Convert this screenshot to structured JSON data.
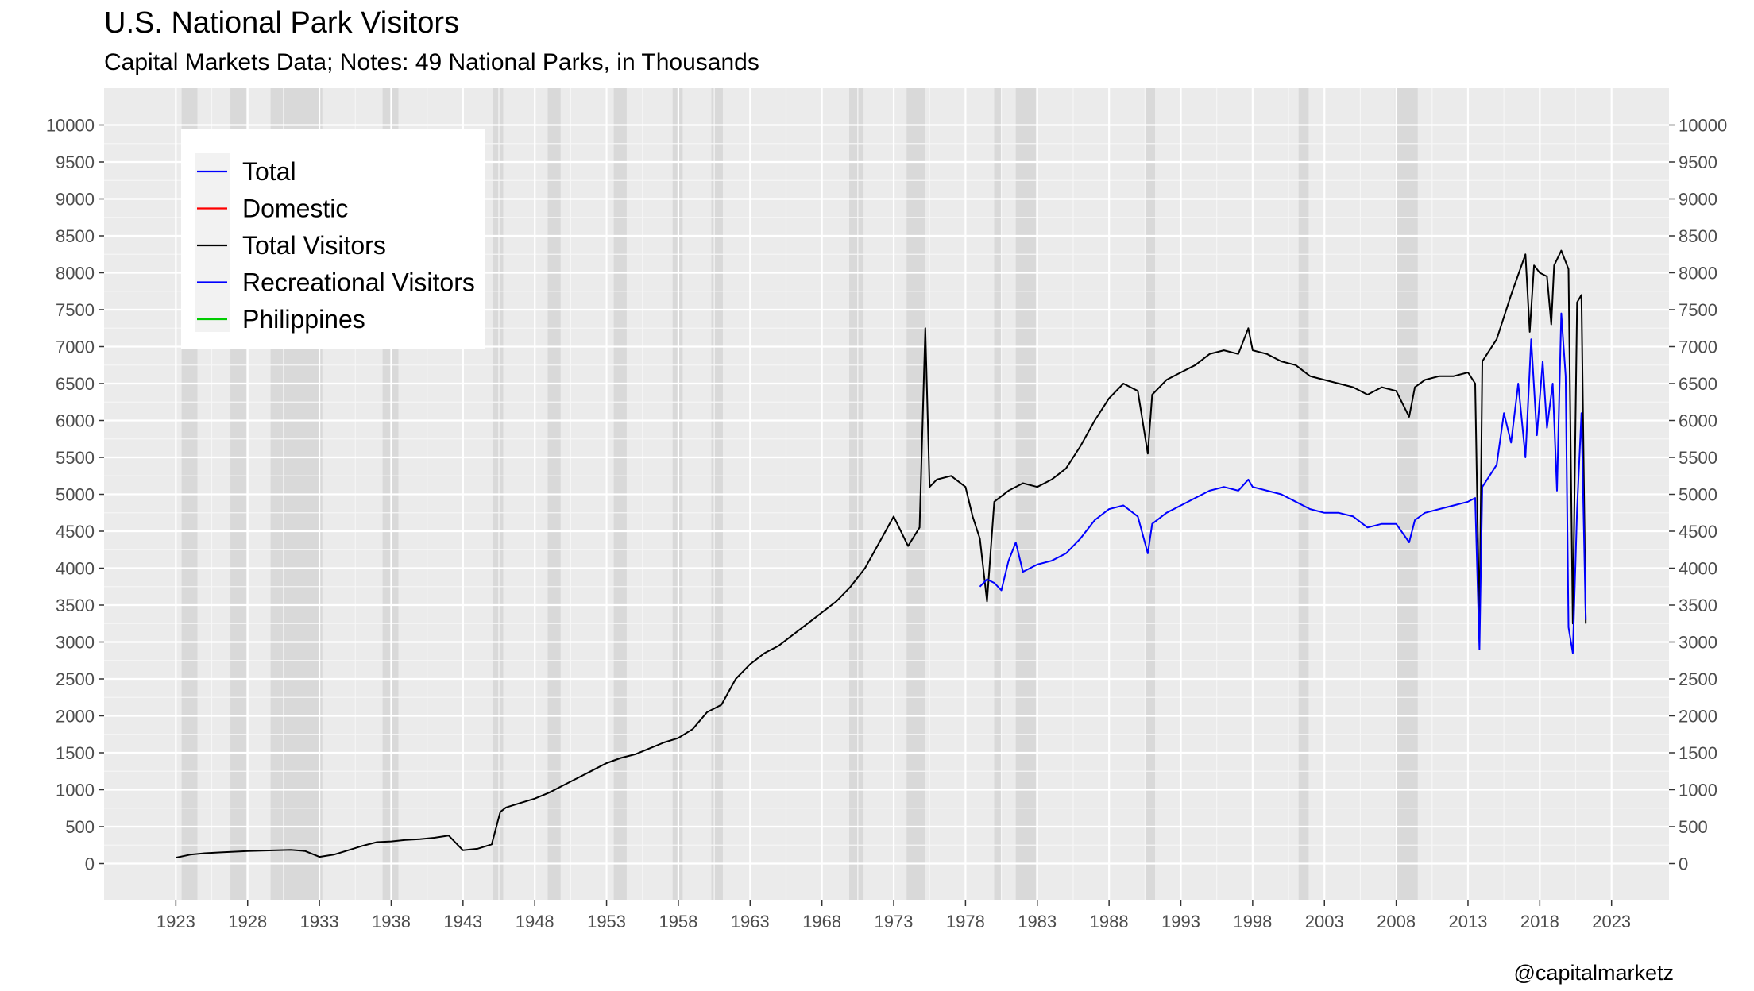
{
  "title": "U.S. National Park Visitors",
  "subtitle": "Capital Markets Data; Notes: 49 National Parks, in Thousands",
  "credit": "@capitalmarketz",
  "chart_data": {
    "type": "line",
    "xlim": [
      1918.0,
      2027.0
    ],
    "ylim": [
      -500,
      10500
    ],
    "x_ticks": [
      1923,
      1928,
      1933,
      1938,
      1943,
      1948,
      1953,
      1958,
      1963,
      1968,
      1973,
      1978,
      1983,
      1988,
      1993,
      1998,
      2003,
      2008,
      2013,
      2018,
      2023
    ],
    "y_ticks": [
      0,
      500,
      1000,
      1500,
      2000,
      2500,
      3000,
      3500,
      4000,
      4500,
      5000,
      5500,
      6000,
      6500,
      7000,
      7500,
      8000,
      8500,
      9000,
      9500,
      10000
    ],
    "grid": true,
    "legend_position": "top-left",
    "legend": [
      {
        "label": "Total",
        "color": "#0000ff"
      },
      {
        "label": "Domestic",
        "color": "#ff0000"
      },
      {
        "label": "Total Visitors",
        "color": "#000000"
      },
      {
        "label": "Recreational Visitors",
        "color": "#0000ff"
      },
      {
        "label": "Philippines",
        "color": "#00cc00"
      }
    ],
    "recessions": [
      [
        1923.4,
        1924.5
      ],
      [
        1926.8,
        1927.9
      ],
      [
        1929.6,
        1933.2
      ],
      [
        1937.4,
        1938.5
      ],
      [
        1945.1,
        1945.8
      ],
      [
        1948.9,
        1949.8
      ],
      [
        1953.5,
        1954.4
      ],
      [
        1957.6,
        1958.3
      ],
      [
        1960.3,
        1961.1
      ],
      [
        1969.9,
        1970.9
      ],
      [
        1973.9,
        1975.2
      ],
      [
        1980.0,
        1980.5
      ],
      [
        1981.5,
        1982.9
      ],
      [
        1990.5,
        1991.2
      ],
      [
        2001.2,
        2001.9
      ],
      [
        2007.9,
        2009.5
      ]
    ],
    "series": [
      {
        "name": "Total Visitors",
        "color": "#000000",
        "points": [
          [
            1923.0,
            80
          ],
          [
            1924.0,
            120
          ],
          [
            1925.0,
            140
          ],
          [
            1926.0,
            150
          ],
          [
            1927.0,
            160
          ],
          [
            1928.0,
            170
          ],
          [
            1929.0,
            175
          ],
          [
            1930.0,
            180
          ],
          [
            1931.0,
            185
          ],
          [
            1932.0,
            170
          ],
          [
            1933.0,
            90
          ],
          [
            1934.0,
            120
          ],
          [
            1935.0,
            180
          ],
          [
            1936.0,
            240
          ],
          [
            1937.0,
            290
          ],
          [
            1938.0,
            300
          ],
          [
            1939.0,
            320
          ],
          [
            1940.0,
            330
          ],
          [
            1941.0,
            350
          ],
          [
            1942.0,
            380
          ],
          [
            1943.0,
            180
          ],
          [
            1944.0,
            200
          ],
          [
            1945.0,
            260
          ],
          [
            1945.6,
            700
          ],
          [
            1946.0,
            760
          ],
          [
            1947.0,
            820
          ],
          [
            1948.0,
            880
          ],
          [
            1949.0,
            960
          ],
          [
            1950.0,
            1060
          ],
          [
            1951.0,
            1160
          ],
          [
            1952.0,
            1260
          ],
          [
            1953.0,
            1360
          ],
          [
            1954.0,
            1430
          ],
          [
            1955.0,
            1480
          ],
          [
            1956.0,
            1560
          ],
          [
            1957.0,
            1640
          ],
          [
            1958.0,
            1700
          ],
          [
            1959.0,
            1820
          ],
          [
            1960.0,
            2050
          ],
          [
            1961.0,
            2150
          ],
          [
            1962.0,
            2500
          ],
          [
            1963.0,
            2700
          ],
          [
            1964.0,
            2850
          ],
          [
            1965.0,
            2950
          ],
          [
            1966.0,
            3100
          ],
          [
            1967.0,
            3250
          ],
          [
            1968.0,
            3400
          ],
          [
            1969.0,
            3550
          ],
          [
            1970.0,
            3750
          ],
          [
            1971.0,
            4000
          ],
          [
            1972.0,
            4350
          ],
          [
            1973.0,
            4700
          ],
          [
            1974.0,
            4300
          ],
          [
            1974.8,
            4550
          ],
          [
            1975.2,
            7250
          ],
          [
            1975.5,
            5100
          ],
          [
            1976.0,
            5200
          ],
          [
            1977.0,
            5250
          ],
          [
            1978.0,
            5100
          ],
          [
            1978.5,
            4700
          ],
          [
            1979.0,
            4400
          ],
          [
            1979.5,
            3550
          ],
          [
            1980.0,
            4900
          ],
          [
            1981.0,
            5050
          ],
          [
            1982.0,
            5150
          ],
          [
            1983.0,
            5100
          ],
          [
            1984.0,
            5200
          ],
          [
            1985.0,
            5350
          ],
          [
            1986.0,
            5650
          ],
          [
            1987.0,
            6000
          ],
          [
            1988.0,
            6300
          ],
          [
            1989.0,
            6500
          ],
          [
            1990.0,
            6400
          ],
          [
            1990.7,
            5550
          ],
          [
            1991.0,
            6350
          ],
          [
            1992.0,
            6550
          ],
          [
            1993.0,
            6650
          ],
          [
            1994.0,
            6750
          ],
          [
            1995.0,
            6900
          ],
          [
            1996.0,
            6950
          ],
          [
            1997.0,
            6900
          ],
          [
            1997.7,
            7250
          ],
          [
            1998.0,
            6950
          ],
          [
            1999.0,
            6900
          ],
          [
            2000.0,
            6800
          ],
          [
            2001.0,
            6750
          ],
          [
            2002.0,
            6600
          ],
          [
            2003.0,
            6550
          ],
          [
            2004.0,
            6500
          ],
          [
            2005.0,
            6450
          ],
          [
            2006.0,
            6350
          ],
          [
            2007.0,
            6450
          ],
          [
            2008.0,
            6400
          ],
          [
            2008.9,
            6050
          ],
          [
            2009.3,
            6450
          ],
          [
            2010.0,
            6550
          ],
          [
            2011.0,
            6600
          ],
          [
            2012.0,
            6600
          ],
          [
            2013.0,
            6650
          ],
          [
            2013.5,
            6500
          ],
          [
            2013.8,
            3200
          ],
          [
            2014.0,
            6800
          ],
          [
            2015.0,
            7100
          ],
          [
            2016.0,
            7700
          ],
          [
            2017.0,
            8250
          ],
          [
            2017.3,
            7200
          ],
          [
            2017.6,
            8100
          ],
          [
            2018.0,
            8000
          ],
          [
            2018.5,
            7950
          ],
          [
            2018.8,
            7300
          ],
          [
            2019.0,
            8100
          ],
          [
            2019.5,
            8300
          ],
          [
            2020.0,
            8050
          ],
          [
            2020.3,
            3250
          ],
          [
            2020.6,
            7600
          ],
          [
            2020.9,
            7700
          ],
          [
            2021.2,
            3250
          ]
        ]
      },
      {
        "name": "Recreational Visitors",
        "color": "#0000ff",
        "points": [
          [
            1979.0,
            3750
          ],
          [
            1979.5,
            3850
          ],
          [
            1980.0,
            3800
          ],
          [
            1980.5,
            3700
          ],
          [
            1981.0,
            4100
          ],
          [
            1981.5,
            4350
          ],
          [
            1982.0,
            3950
          ],
          [
            1983.0,
            4050
          ],
          [
            1984.0,
            4100
          ],
          [
            1985.0,
            4200
          ],
          [
            1986.0,
            4400
          ],
          [
            1987.0,
            4650
          ],
          [
            1988.0,
            4800
          ],
          [
            1989.0,
            4850
          ],
          [
            1990.0,
            4700
          ],
          [
            1990.7,
            4200
          ],
          [
            1991.0,
            4600
          ],
          [
            1992.0,
            4750
          ],
          [
            1993.0,
            4850
          ],
          [
            1994.0,
            4950
          ],
          [
            1995.0,
            5050
          ],
          [
            1996.0,
            5100
          ],
          [
            1997.0,
            5050
          ],
          [
            1997.7,
            5200
          ],
          [
            1998.0,
            5100
          ],
          [
            1999.0,
            5050
          ],
          [
            2000.0,
            5000
          ],
          [
            2001.0,
            4900
          ],
          [
            2002.0,
            4800
          ],
          [
            2003.0,
            4750
          ],
          [
            2004.0,
            4750
          ],
          [
            2005.0,
            4700
          ],
          [
            2006.0,
            4550
          ],
          [
            2007.0,
            4600
          ],
          [
            2008.0,
            4600
          ],
          [
            2008.9,
            4350
          ],
          [
            2009.3,
            4650
          ],
          [
            2010.0,
            4750
          ],
          [
            2011.0,
            4800
          ],
          [
            2012.0,
            4850
          ],
          [
            2013.0,
            4900
          ],
          [
            2013.5,
            4950
          ],
          [
            2013.8,
            2900
          ],
          [
            2014.0,
            5100
          ],
          [
            2015.0,
            5400
          ],
          [
            2015.5,
            6100
          ],
          [
            2016.0,
            5700
          ],
          [
            2016.5,
            6500
          ],
          [
            2017.0,
            5500
          ],
          [
            2017.4,
            7100
          ],
          [
            2017.8,
            5800
          ],
          [
            2018.2,
            6800
          ],
          [
            2018.5,
            5900
          ],
          [
            2018.9,
            6500
          ],
          [
            2019.2,
            5050
          ],
          [
            2019.5,
            7450
          ],
          [
            2019.8,
            6600
          ],
          [
            2020.0,
            3200
          ],
          [
            2020.3,
            2850
          ],
          [
            2020.6,
            4800
          ],
          [
            2020.9,
            6100
          ],
          [
            2021.2,
            3300
          ]
        ]
      }
    ]
  }
}
